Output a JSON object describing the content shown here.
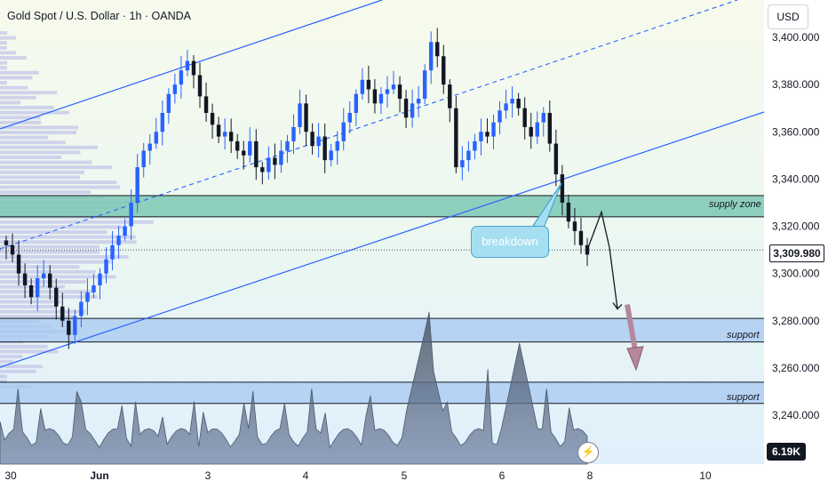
{
  "header": {
    "title": "Gold Spot / U.S. Dollar · 1h · OANDA",
    "currency": "USD"
  },
  "price_axis": {
    "ticks": [
      "3,400.000",
      "3,380.000",
      "3,360.000",
      "3,340.000",
      "3,320.000",
      "3,300.000",
      "3,280.000",
      "3,260.000",
      "3,240.000"
    ],
    "current_price": "3,309.980"
  },
  "volume": {
    "last": "6.19K"
  },
  "annotations": {
    "breakdown": "breakdown",
    "supply_zone": "supply zone",
    "support_1": "support",
    "support_2": "support"
  },
  "colors": {
    "bull": "#2962ff",
    "bear": "#131722",
    "channel": "#2962ff",
    "supply_zone": "#7cc8b4",
    "support_zone": "#a7c8f2",
    "volume_fill": "#5b6b80",
    "arrow_pink": "#b5879a"
  },
  "chart_data": {
    "type": "candlestick",
    "title": "Gold Spot / U.S. Dollar · 1h · OANDA",
    "x_ticks": [
      "30",
      "Jun",
      "3",
      "4",
      "5",
      "6",
      "8",
      "10"
    ],
    "y_ticks": [
      3400,
      3380,
      3360,
      3340,
      3320,
      3300,
      3280,
      3260,
      3240
    ],
    "ylim": [
      3230,
      3405
    ],
    "current_price": 3309.98,
    "zones": [
      {
        "label": "supply zone",
        "from": 3324,
        "to": 3333
      },
      {
        "label": "support",
        "from": 3271,
        "to": 3281
      },
      {
        "label": "support",
        "from": 3245,
        "to": 3254
      }
    ],
    "close_path": [
      3312,
      3308,
      3300,
      3295,
      3290,
      3298,
      3300,
      3294,
      3286,
      3280,
      3274,
      3282,
      3288,
      3292,
      3295,
      3300,
      3306,
      3312,
      3316,
      3320,
      3330,
      3345,
      3352,
      3355,
      3360,
      3368,
      3376,
      3380,
      3386,
      3390,
      3384,
      3375,
      3368,
      3363,
      3358,
      3360,
      3356,
      3352,
      3350,
      3356,
      3345,
      3343,
      3349,
      3346,
      3352,
      3356,
      3362,
      3372,
      3360,
      3354,
      3358,
      3348,
      3352,
      3356,
      3364,
      3368,
      3376,
      3382,
      3378,
      3372,
      3376,
      3378,
      3380,
      3374,
      3366,
      3372,
      3374,
      3386,
      3398,
      3392,
      3380,
      3370,
      3345,
      3348,
      3352,
      3356,
      3360,
      3358,
      3364,
      3369,
      3372,
      3374,
      3370,
      3362,
      3358,
      3364,
      3368,
      3355,
      3342,
      3330,
      3322,
      3318,
      3312,
      3308
    ],
    "projection": [
      3309.98,
      3326,
      3311,
      3285
    ],
    "projection_2": [
      3285,
      3260
    ]
  }
}
